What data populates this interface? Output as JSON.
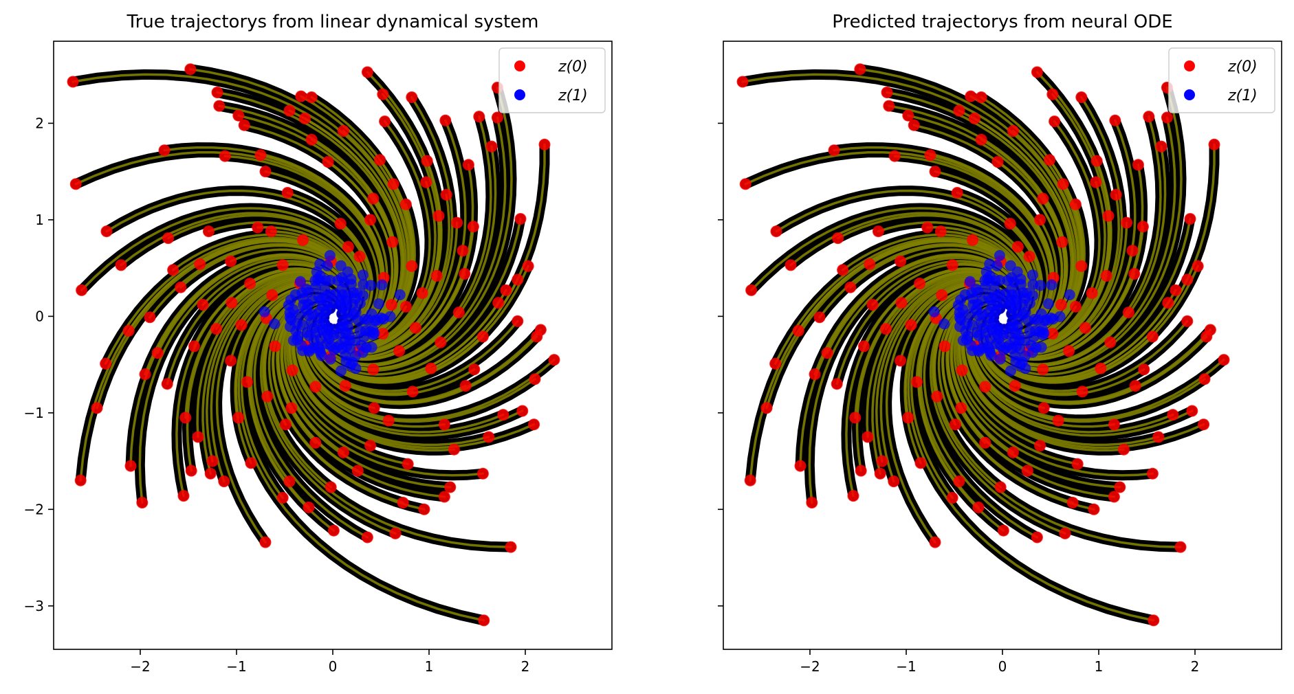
{
  "chart_data": [
    {
      "type": "scatter",
      "title": "True trajectorys from linear dynamical system",
      "xlabel": "",
      "ylabel": "",
      "xlim": [
        -2.9,
        2.9
      ],
      "ylim": [
        -3.45,
        2.85
      ],
      "xticks": [
        -2,
        -1,
        0,
        1,
        2
      ],
      "xtick_labels": [
        "−2",
        "−1",
        "0",
        "1",
        "2"
      ],
      "yticks": [
        -3,
        -2,
        -1,
        0,
        1,
        2
      ],
      "ytick_labels": [
        "−3",
        "−2",
        "−1",
        "0",
        "1",
        "2"
      ],
      "show_ytick_labels": true,
      "grid": false,
      "legend_position": "top-right",
      "series": [
        {
          "name": "z(0)",
          "color": "#ff0000",
          "role": "initial-points"
        },
        {
          "name": "z(1)",
          "color": "#0000ff",
          "role": "final-points"
        }
      ],
      "trajectory_colors": {
        "outer": "#000000",
        "inner": "#808000"
      }
    },
    {
      "type": "scatter",
      "title": "Predicted trajectorys from neural ODE",
      "xlabel": "",
      "ylabel": "",
      "xlim": [
        -2.9,
        2.9
      ],
      "ylim": [
        -3.45,
        2.85
      ],
      "xticks": [
        -2,
        -1,
        0,
        1,
        2
      ],
      "xtick_labels": [
        "−2",
        "−1",
        "0",
        "1",
        "2"
      ],
      "yticks": [
        -3,
        -2,
        -1,
        0,
        1,
        2
      ],
      "ytick_labels": [
        "−3",
        "−2",
        "−1",
        "0",
        "1",
        "2"
      ],
      "show_ytick_labels": false,
      "grid": false,
      "legend_position": "top-right",
      "series": [
        {
          "name": "z(0)",
          "color": "#ff0000",
          "role": "initial-points"
        },
        {
          "name": "z(1)",
          "color": "#0000ff",
          "role": "final-points"
        }
      ],
      "trajectory_colors": {
        "outer": "#000000",
        "inner": "#808000"
      }
    }
  ],
  "initial_points": [
    [
      -2.7,
      2.43
    ],
    [
      -2.67,
      1.37
    ],
    [
      -2.61,
      0.27
    ],
    [
      -2.62,
      -1.7
    ],
    [
      -2.36,
      -0.49
    ],
    [
      -2.2,
      0.53
    ],
    [
      -2.12,
      -0.15
    ],
    [
      -1.98,
      -1.93
    ],
    [
      -1.9,
      -0.01
    ],
    [
      -1.48,
      2.56
    ],
    [
      -1.47,
      -1.6
    ],
    [
      -1.4,
      -1.25
    ],
    [
      -1.2,
      2.32
    ],
    [
      -1.18,
      2.18
    ],
    [
      -1.12,
      1.66
    ],
    [
      -0.92,
      1.98
    ],
    [
      -0.75,
      1.67
    ],
    [
      -0.33,
      2.28
    ],
    [
      -0.29,
      2.05
    ],
    [
      -0.22,
      2.27
    ],
    [
      0.36,
      2.53
    ],
    [
      0.52,
      2.3
    ],
    [
      0.54,
      2.02
    ],
    [
      1.17,
      2.03
    ],
    [
      1.52,
      2.07
    ],
    [
      1.71,
      2.06
    ],
    [
      1.71,
      2.37
    ],
    [
      2.2,
      1.78
    ],
    [
      1.41,
      1.57
    ],
    [
      0.98,
      1.61
    ],
    [
      1.29,
      0.97
    ],
    [
      1.46,
      0.93
    ],
    [
      1.95,
      1.01
    ],
    [
      1.8,
      0.27
    ],
    [
      1.92,
      0.38
    ],
    [
      1.92,
      -0.05
    ],
    [
      2.16,
      -0.14
    ],
    [
      2.12,
      -0.21
    ],
    [
      2.1,
      -0.65
    ],
    [
      2.09,
      -1.12
    ],
    [
      1.97,
      -0.98
    ],
    [
      1.77,
      -1.02
    ],
    [
      1.56,
      -1.63
    ],
    [
      1.85,
      -2.39
    ],
    [
      1.57,
      -3.15
    ],
    [
      1.22,
      -1.77
    ],
    [
      1.16,
      -1.87
    ],
    [
      1.26,
      -1.38
    ],
    [
      0.78,
      -1.53
    ],
    [
      0.73,
      -1.93
    ],
    [
      0.65,
      -2.25
    ],
    [
      0.36,
      -2.29
    ],
    [
      0.26,
      -1.6
    ],
    [
      0.01,
      -2.22
    ],
    [
      -0.45,
      -1.71
    ],
    [
      -0.52,
      -1.88
    ],
    [
      -0.7,
      -2.34
    ],
    [
      -0.85,
      -1.52
    ],
    [
      -1.13,
      -1.71
    ],
    [
      -1.27,
      -1.63
    ],
    [
      -1.25,
      -1.5
    ],
    [
      -1.53,
      -1.05
    ],
    [
      -1.72,
      -0.7
    ],
    [
      -1.71,
      0.81
    ],
    [
      -1.66,
      0.48
    ],
    [
      -1.58,
      0.3
    ],
    [
      -1.29,
      0.88
    ],
    [
      -1.06,
      0.57
    ],
    [
      -0.64,
      0.88
    ],
    [
      -0.7,
      1.5
    ],
    [
      -0.22,
      1.83
    ],
    [
      0.11,
      1.92
    ],
    [
      0.49,
      1.62
    ],
    [
      0.63,
      1.37
    ],
    [
      0.76,
      1.16
    ],
    [
      0.97,
      1.39
    ],
    [
      1.1,
      1.04
    ],
    [
      1.35,
      0.68
    ],
    [
      1.37,
      0.44
    ],
    [
      1.31,
      0.04
    ],
    [
      1.56,
      -0.21
    ],
    [
      1.47,
      -0.55
    ],
    [
      1.38,
      -0.72
    ],
    [
      1.02,
      -0.54
    ],
    [
      0.83,
      -0.78
    ],
    [
      0.58,
      -1.08
    ],
    [
      0.39,
      -1.34
    ],
    [
      0.11,
      -1.41
    ],
    [
      -0.18,
      -1.31
    ],
    [
      -0.49,
      -1.12
    ],
    [
      -0.68,
      -0.83
    ],
    [
      -0.89,
      -0.68
    ],
    [
      -1.06,
      -0.46
    ],
    [
      -1.21,
      -0.13
    ],
    [
      -1.05,
      0.14
    ],
    [
      -0.86,
      0.34
    ],
    [
      -0.52,
      0.53
    ],
    [
      -0.31,
      0.79
    ],
    [
      0.08,
      0.96
    ],
    [
      0.39,
      1.0
    ],
    [
      0.62,
      0.77
    ],
    [
      0.82,
      0.52
    ],
    [
      0.93,
      0.24
    ],
    [
      0.86,
      -0.12
    ],
    [
      0.69,
      -0.36
    ],
    [
      0.42,
      -0.55
    ],
    [
      0.13,
      -0.72
    ],
    [
      -0.18,
      -0.73
    ],
    [
      -0.42,
      -0.56
    ],
    [
      -0.6,
      -0.31
    ],
    [
      -0.69,
      -0.02
    ],
    [
      -0.63,
      0.22
    ],
    [
      -0.34,
      0.34
    ],
    [
      -0.02,
      0.57
    ],
    [
      0.28,
      0.62
    ],
    [
      0.53,
      0.4
    ],
    [
      0.61,
      0.12
    ],
    [
      0.52,
      -0.18
    ],
    [
      0.27,
      -0.36
    ],
    [
      -0.03,
      -0.42
    ],
    [
      -0.28,
      -0.31
    ],
    [
      -1.95,
      -0.6
    ],
    [
      -1.82,
      -0.38
    ],
    [
      -1.44,
      -0.31
    ],
    [
      -1.35,
      0.12
    ],
    [
      -2.1,
      -1.55
    ],
    [
      -0.98,
      2.08
    ],
    [
      -0.45,
      2.13
    ],
    [
      0.82,
      2.27
    ],
    [
      1.65,
      1.76
    ],
    [
      2.03,
      0.52
    ],
    [
      2.3,
      -0.45
    ],
    [
      1.62,
      -1.25
    ],
    [
      0.95,
      -2.0
    ],
    [
      -0.25,
      -1.98
    ],
    [
      -1.55,
      -1.86
    ],
    [
      -2.45,
      -0.95
    ],
    [
      -2.35,
      0.88
    ],
    [
      -1.75,
      1.72
    ],
    [
      -0.05,
      1.6
    ],
    [
      1.18,
      1.26
    ],
    [
      1.72,
      0.14
    ],
    [
      1.16,
      -1.12
    ],
    [
      -0.02,
      -1.77
    ],
    [
      -0.98,
      -1.05
    ],
    [
      -1.38,
      0.54
    ],
    [
      -0.47,
      1.28
    ],
    [
      0.42,
      1.22
    ],
    [
      1.08,
      0.42
    ],
    [
      1.12,
      -0.27
    ],
    [
      0.43,
      -0.95
    ],
    [
      -0.43,
      -0.95
    ],
    [
      -0.95,
      -0.09
    ],
    [
      -0.78,
      0.92
    ],
    [
      0.16,
      0.72
    ],
    [
      0.76,
      0.1
    ]
  ]
}
